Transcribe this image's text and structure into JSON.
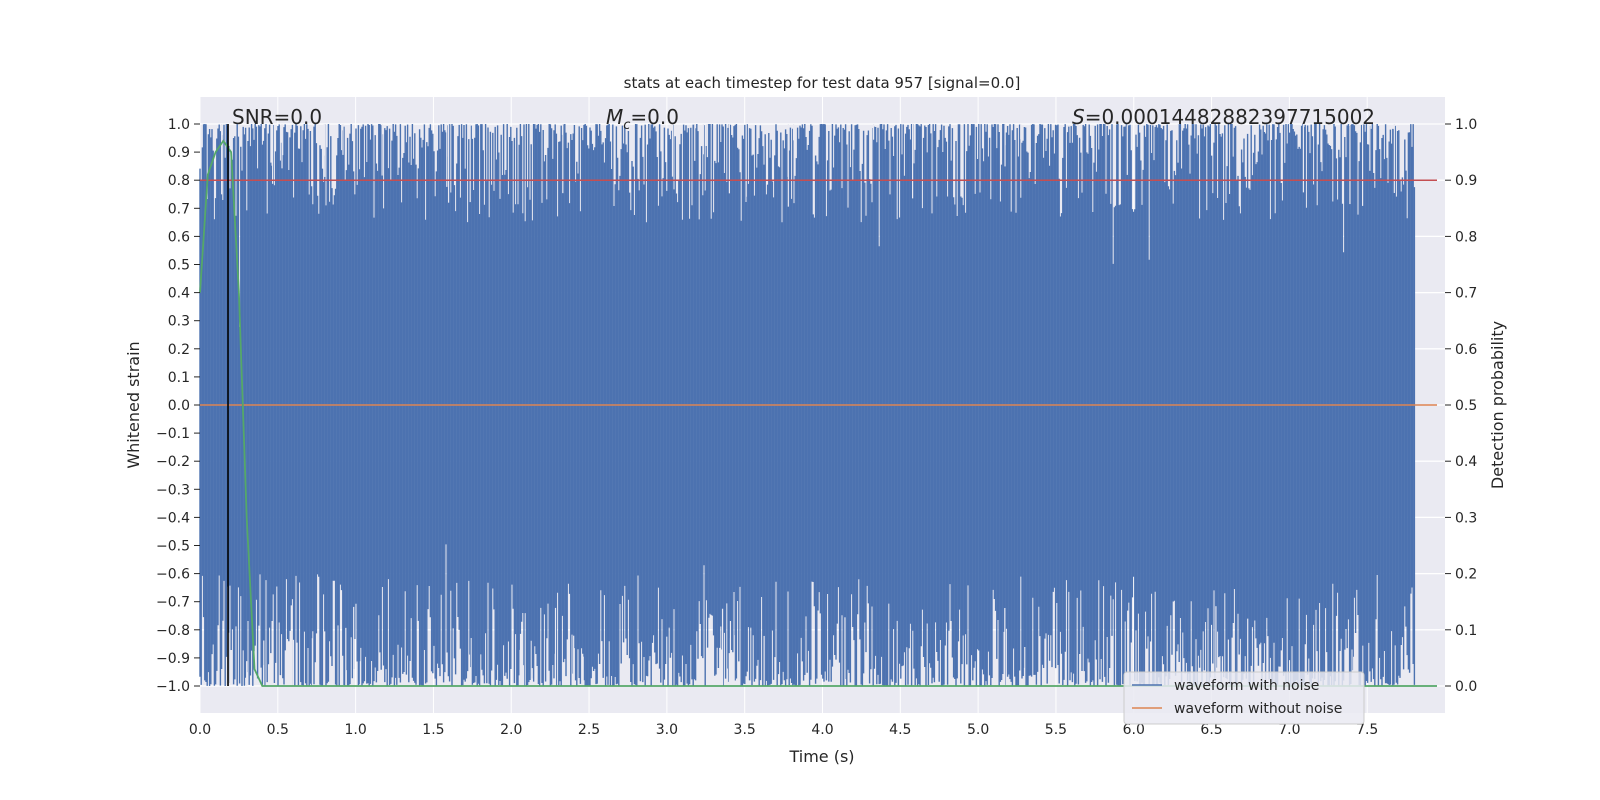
{
  "chart_data": {
    "type": "line",
    "title": "stats at each timestep for test data 957 [signal=0.0]",
    "xlabel": "Time (s)",
    "ylabel": "Whitened strain",
    "y2label": "Detection probability",
    "xlim": [
      0.0,
      8.0
    ],
    "ylim": [
      -1.0,
      1.0
    ],
    "y2lim": [
      0.0,
      1.0
    ],
    "x_ticks": [
      "0.0",
      "0.5",
      "1.0",
      "1.5",
      "2.0",
      "2.5",
      "3.0",
      "3.5",
      "4.0",
      "4.5",
      "5.0",
      "5.5",
      "6.0",
      "6.5",
      "7.0",
      "7.5"
    ],
    "y_ticks": [
      "1.0",
      "0.9",
      "0.8",
      "0.7",
      "0.6",
      "0.5",
      "0.4",
      "0.3",
      "0.2",
      "0.1",
      "0.0",
      "−0.1",
      "−0.2",
      "−0.3",
      "−0.4",
      "−0.5",
      "−0.6",
      "−0.7",
      "−0.8",
      "−0.9",
      "−1.0"
    ],
    "y2_ticks": [
      "1.0",
      "0.9",
      "0.8",
      "0.7",
      "0.6",
      "0.5",
      "0.4",
      "0.3",
      "0.2",
      "0.1",
      "0.0"
    ],
    "annotations": {
      "snr": "SNR=0.0",
      "mc_symbol": "M",
      "mc_sub": "c",
      "mc_value": "=0.0",
      "s_symbol": "S",
      "s_value": "=0.00014482882397715002"
    },
    "marker_time": 0.18,
    "threshold_probability": 0.9,
    "series": [
      {
        "name": "waveform with noise",
        "color": "#4c72b0",
        "description": "whitened strain noise, values spanning -1.0 to 1.0"
      },
      {
        "name": "waveform without noise",
        "color": "#dd8452",
        "values_constant": 0.0
      },
      {
        "name": "detection probability",
        "color": "#55a868",
        "axis": "right",
        "x": [
          0.0,
          0.05,
          0.1,
          0.15,
          0.2,
          0.25,
          0.3,
          0.35,
          0.4,
          8.0
        ],
        "y": [
          0.7,
          0.91,
          0.95,
          0.97,
          0.95,
          0.7,
          0.3,
          0.03,
          0.0,
          0.0
        ]
      }
    ],
    "legend": [
      "waveform with noise",
      "waveform without noise"
    ],
    "legend_position": "bottom-right"
  }
}
